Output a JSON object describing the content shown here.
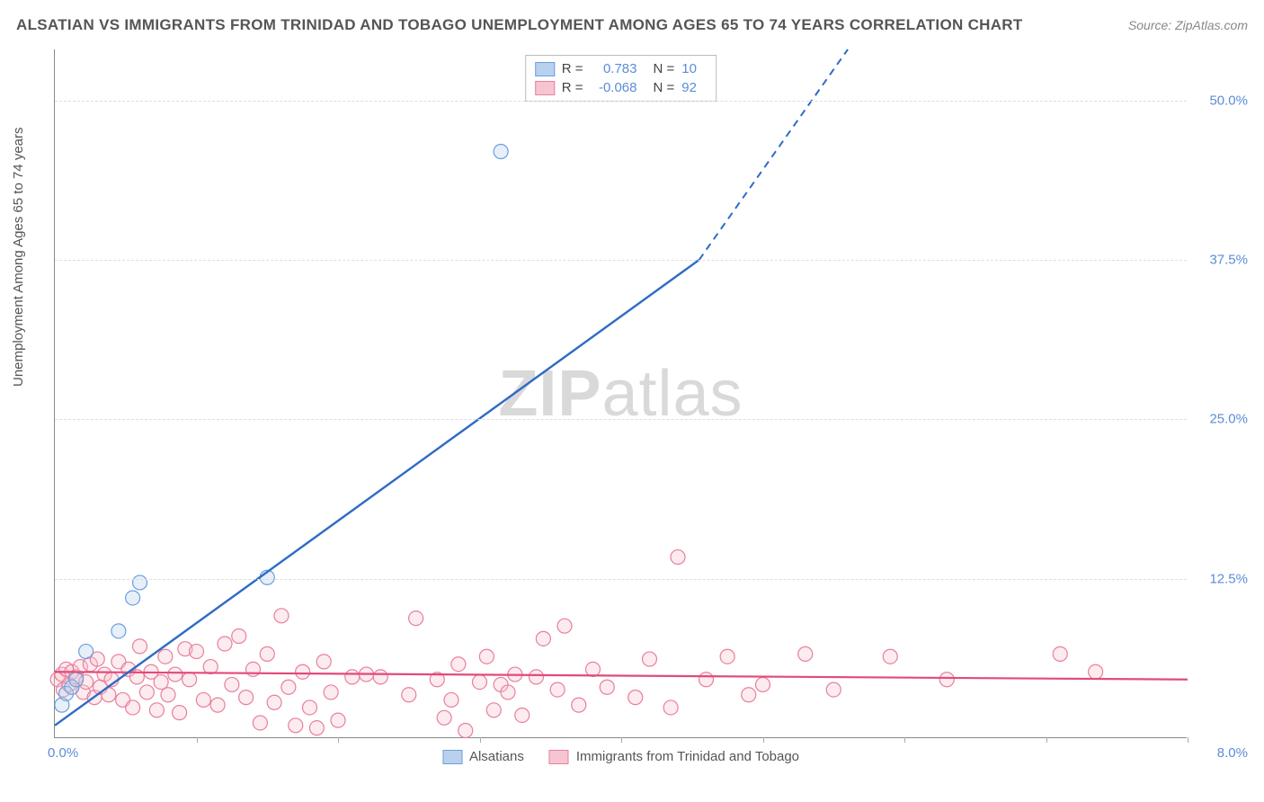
{
  "header": {
    "title": "ALSATIAN VS IMMIGRANTS FROM TRINIDAD AND TOBAGO UNEMPLOYMENT AMONG AGES 65 TO 74 YEARS CORRELATION CHART",
    "source_prefix": "Source: ",
    "source": "ZipAtlas.com"
  },
  "axes": {
    "y_label": "Unemployment Among Ages 65 to 74 years",
    "x_min": 0.0,
    "x_max": 8.0,
    "y_min": 0.0,
    "y_max": 54.0,
    "y_ticks": [
      12.5,
      25.0,
      37.5,
      50.0
    ],
    "y_tick_labels": [
      "12.5%",
      "25.0%",
      "37.5%",
      "50.0%"
    ],
    "x_ticks": [
      1.0,
      2.0,
      3.0,
      4.0,
      5.0,
      6.0,
      7.0,
      8.0
    ],
    "origin_y_label": "0.0%",
    "origin_x_label": "8.0%"
  },
  "colors": {
    "series_a_fill": "#b9d1ee",
    "series_a_stroke": "#6a9fdd",
    "series_a_line": "#2e6bc5",
    "series_b_fill": "#f6c5d1",
    "series_b_stroke": "#e97f9b",
    "series_b_line": "#e24a7a",
    "grid": "#dddddd",
    "axis": "#888888",
    "tick_text": "#5b8dd6",
    "watermark": "#d9d9d9"
  },
  "legend_top": {
    "rows": [
      {
        "swatch": "a",
        "r_label": "R =",
        "r_value": "0.783",
        "n_label": "N =",
        "n_value": "10"
      },
      {
        "swatch": "b",
        "r_label": "R =",
        "r_value": "-0.068",
        "n_label": "N =",
        "n_value": "92"
      }
    ]
  },
  "legend_bottom": {
    "items": [
      {
        "swatch": "a",
        "label": "Alsatians"
      },
      {
        "swatch": "b",
        "label": "Immigrants from Trinidad and Tobago"
      }
    ]
  },
  "watermark": {
    "part1": "ZIP",
    "part2": "atlas"
  },
  "series_a": {
    "name": "Alsatians",
    "points": [
      [
        0.05,
        2.6
      ],
      [
        0.08,
        3.5
      ],
      [
        0.12,
        4.0
      ],
      [
        0.15,
        4.6
      ],
      [
        0.22,
        6.8
      ],
      [
        0.45,
        8.4
      ],
      [
        0.55,
        11.0
      ],
      [
        0.6,
        12.2
      ],
      [
        1.5,
        12.6
      ],
      [
        3.15,
        46.0
      ]
    ],
    "trend": {
      "x1": 0.0,
      "y1": 1.0,
      "x2_solid": 4.55,
      "y2_solid": 37.5,
      "x2_dash": 5.6,
      "y2_dash": 54.0
    },
    "marker_radius": 8
  },
  "series_b": {
    "name": "Immigrants from Trinidad and Tobago",
    "points": [
      [
        0.02,
        4.6
      ],
      [
        0.05,
        5.0
      ],
      [
        0.06,
        3.8
      ],
      [
        0.08,
        5.4
      ],
      [
        0.1,
        4.2
      ],
      [
        0.12,
        5.2
      ],
      [
        0.15,
        4.8
      ],
      [
        0.18,
        5.6
      ],
      [
        0.2,
        3.6
      ],
      [
        0.22,
        4.4
      ],
      [
        0.25,
        5.8
      ],
      [
        0.28,
        3.2
      ],
      [
        0.3,
        6.2
      ],
      [
        0.32,
        4.0
      ],
      [
        0.35,
        5.0
      ],
      [
        0.38,
        3.4
      ],
      [
        0.4,
        4.6
      ],
      [
        0.45,
        6.0
      ],
      [
        0.48,
        3.0
      ],
      [
        0.52,
        5.4
      ],
      [
        0.55,
        2.4
      ],
      [
        0.58,
        4.8
      ],
      [
        0.6,
        7.2
      ],
      [
        0.65,
        3.6
      ],
      [
        0.68,
        5.2
      ],
      [
        0.72,
        2.2
      ],
      [
        0.75,
        4.4
      ],
      [
        0.78,
        6.4
      ],
      [
        0.8,
        3.4
      ],
      [
        0.85,
        5.0
      ],
      [
        0.88,
        2.0
      ],
      [
        0.92,
        7.0
      ],
      [
        0.95,
        4.6
      ],
      [
        1.0,
        6.8
      ],
      [
        1.05,
        3.0
      ],
      [
        1.1,
        5.6
      ],
      [
        1.15,
        2.6
      ],
      [
        1.2,
        7.4
      ],
      [
        1.25,
        4.2
      ],
      [
        1.3,
        8.0
      ],
      [
        1.35,
        3.2
      ],
      [
        1.4,
        5.4
      ],
      [
        1.45,
        1.2
      ],
      [
        1.5,
        6.6
      ],
      [
        1.55,
        2.8
      ],
      [
        1.6,
        9.6
      ],
      [
        1.65,
        4.0
      ],
      [
        1.7,
        1.0
      ],
      [
        1.75,
        5.2
      ],
      [
        1.8,
        2.4
      ],
      [
        1.85,
        0.8
      ],
      [
        1.9,
        6.0
      ],
      [
        1.95,
        3.6
      ],
      [
        2.0,
        1.4
      ],
      [
        2.1,
        4.8
      ],
      [
        2.2,
        5.0
      ],
      [
        2.3,
        4.8
      ],
      [
        2.5,
        3.4
      ],
      [
        2.55,
        9.4
      ],
      [
        2.7,
        4.6
      ],
      [
        2.75,
        1.6
      ],
      [
        2.8,
        3.0
      ],
      [
        2.85,
        5.8
      ],
      [
        2.9,
        0.6
      ],
      [
        3.0,
        4.4
      ],
      [
        3.05,
        6.4
      ],
      [
        3.1,
        2.2
      ],
      [
        3.15,
        4.2
      ],
      [
        3.2,
        3.6
      ],
      [
        3.25,
        5.0
      ],
      [
        3.3,
        1.8
      ],
      [
        3.4,
        4.8
      ],
      [
        3.45,
        7.8
      ],
      [
        3.55,
        3.8
      ],
      [
        3.6,
        8.8
      ],
      [
        3.7,
        2.6
      ],
      [
        3.8,
        5.4
      ],
      [
        3.9,
        4.0
      ],
      [
        4.1,
        3.2
      ],
      [
        4.2,
        6.2
      ],
      [
        4.35,
        2.4
      ],
      [
        4.4,
        14.2
      ],
      [
        4.6,
        4.6
      ],
      [
        4.75,
        6.4
      ],
      [
        4.9,
        3.4
      ],
      [
        5.0,
        4.2
      ],
      [
        5.3,
        6.6
      ],
      [
        5.5,
        3.8
      ],
      [
        5.9,
        6.4
      ],
      [
        6.3,
        4.6
      ],
      [
        7.1,
        6.6
      ],
      [
        7.35,
        5.2
      ]
    ],
    "trend": {
      "x1": 0.0,
      "y1": 5.2,
      "x2": 8.0,
      "y2": 4.6
    },
    "marker_radius": 8
  }
}
